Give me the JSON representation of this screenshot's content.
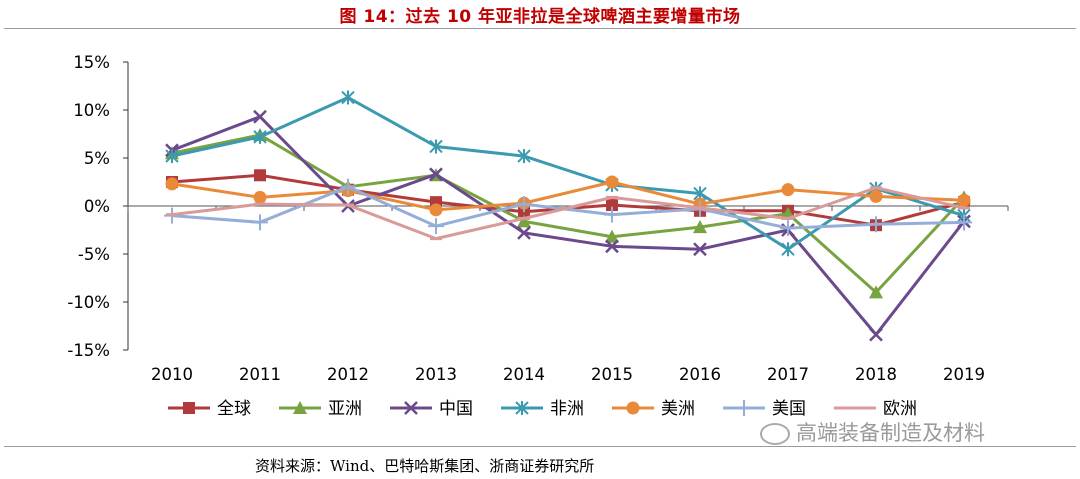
{
  "header": {
    "title": "图 14：过去 10 年亚非拉是全球啤酒主要增量市场"
  },
  "footer": {
    "source": "资料来源：Wind、巴特哈斯集团、浙商证券研究所"
  },
  "watermark": {
    "text": "高端装备制造及材料"
  },
  "chart_data": {
    "type": "line",
    "title": "",
    "xlabel": "",
    "ylabel": "",
    "categories": [
      "2010",
      "2011",
      "2012",
      "2013",
      "2014",
      "2015",
      "2016",
      "2017",
      "2018",
      "2019"
    ],
    "ylim": [
      -15,
      15
    ],
    "yticks": [
      15,
      10,
      5,
      0,
      -5,
      -10,
      -15
    ],
    "ytick_labels": [
      "15%",
      "10%",
      "5%",
      "0%",
      "-5%",
      "-10%",
      "-15%"
    ],
    "legend_position": "bottom",
    "series": [
      {
        "name": "全球",
        "color": "#b33a3a",
        "marker": "square",
        "values": [
          2.5,
          3.2,
          1.7,
          0.4,
          -0.6,
          0.1,
          -0.5,
          -0.5,
          -2.0,
          0.4
        ]
      },
      {
        "name": "亚洲",
        "color": "#77a341",
        "marker": "triangle",
        "values": [
          5.5,
          7.4,
          2.0,
          3.2,
          -1.6,
          -3.2,
          -2.2,
          -0.8,
          -9.0,
          0.9
        ]
      },
      {
        "name": "中国",
        "color": "#6a4a8c",
        "marker": "x",
        "values": [
          5.8,
          9.3,
          0.0,
          3.3,
          -2.8,
          -4.2,
          -4.5,
          -2.5,
          -13.4,
          -1.6
        ]
      },
      {
        "name": "非洲",
        "color": "#3b9ab0",
        "marker": "star",
        "values": [
          5.2,
          7.2,
          11.3,
          6.2,
          5.2,
          2.2,
          1.3,
          -4.5,
          1.8,
          -1.0
        ]
      },
      {
        "name": "美洲",
        "color": "#e98a3a",
        "marker": "circle",
        "values": [
          2.3,
          0.9,
          1.6,
          -0.4,
          0.3,
          2.5,
          0.2,
          1.7,
          1.0,
          0.6
        ]
      },
      {
        "name": "美国",
        "color": "#95aed8",
        "marker": "plus",
        "values": [
          -1.0,
          -1.7,
          2.0,
          -2.1,
          0.2,
          -0.9,
          -0.3,
          -2.3,
          -1.9,
          -1.7
        ]
      },
      {
        "name": "欧洲",
        "color": "#d99a9a",
        "marker": "dash",
        "values": [
          -0.9,
          0.2,
          0.1,
          -3.4,
          -1.3,
          0.9,
          -0.2,
          -1.3,
          1.9,
          -0.2
        ]
      }
    ]
  }
}
